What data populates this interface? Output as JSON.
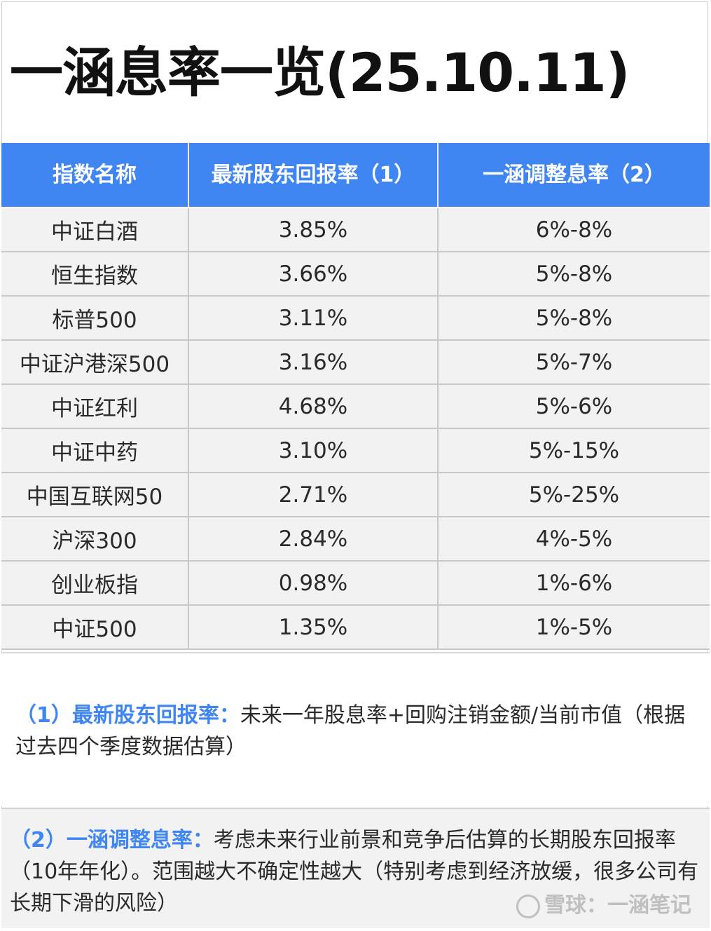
{
  "title": "一涵息率一览(25.10.11)",
  "colors": {
    "header_bg": "#3f86f2",
    "accent_text": "#3f86f2",
    "cell_bg": "#f2f2f2"
  },
  "table": {
    "headers": [
      "指数名称",
      "最新股东回报率（1）",
      "一涵调整息率（2）"
    ],
    "rows": [
      [
        "中证白酒",
        "3.85%",
        "6%-8%"
      ],
      [
        "恒生指数",
        "3.66%",
        "5%-8%"
      ],
      [
        "标普500",
        "3.11%",
        "5%-8%"
      ],
      [
        "中证沪港深500",
        "3.16%",
        "5%-7%"
      ],
      [
        "中证红利",
        "4.68%",
        "5%-6%"
      ],
      [
        "中证中药",
        "3.10%",
        "5%-15%"
      ],
      [
        "中国互联网50",
        "2.71%",
        "5%-25%"
      ],
      [
        "沪深300",
        "2.84%",
        "4%-5%"
      ],
      [
        "创业板指",
        "0.98%",
        "1%-6%"
      ],
      [
        "中证500",
        "1.35%",
        "1%-5%"
      ]
    ]
  },
  "notes": {
    "note1": {
      "head": "（1）最新股东回报率：",
      "body": "未来一年股息率+回购注销金额/当前市值（根据过去四个季度数据估算）"
    },
    "note2": {
      "head": "（2）一涵调整息率：",
      "body": "考虑未来行业前景和竞争后估算的长期股东回报率（10年年化）。范围越大不确定性越大（特别考虑到经济放缓，很多公司有长期下滑的风险）"
    }
  },
  "watermark": {
    "icon": "snowball-logo-icon",
    "text": "雪球：一涵笔记"
  }
}
